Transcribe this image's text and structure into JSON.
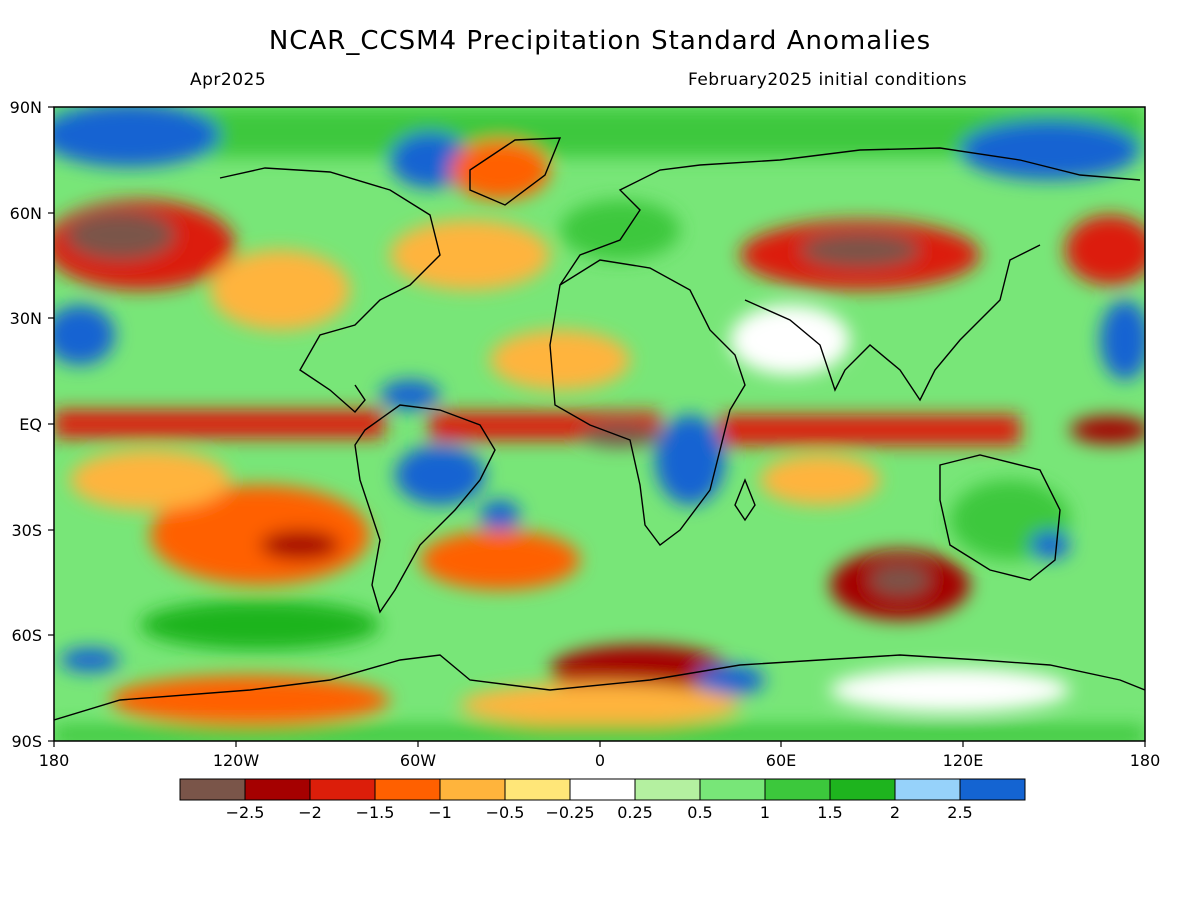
{
  "header": {
    "title": "NCAR_CCSM4 Precipitation Standard Anomalies",
    "target_month": "Apr2025",
    "init_conditions": "February2025 initial conditions"
  },
  "map": {
    "projection": "equirectangular",
    "lon_range": [
      -180,
      180
    ],
    "lat_range": [
      -90,
      90
    ],
    "lat_labels": [
      "90N",
      "60N",
      "30N",
      "EQ",
      "30S",
      "60S",
      "90S"
    ],
    "lon_labels": [
      "180",
      "120W",
      "60W",
      "0",
      "60E",
      "120E",
      "180"
    ]
  },
  "colorbar": {
    "colors": [
      "#7a5549",
      "#a50000",
      "#dc1e0a",
      "#ff6000",
      "#ffb43c",
      "#ffe678",
      "#ffffff",
      "#b4f0a0",
      "#78e678",
      "#3cc83c",
      "#1eb41e",
      "#96d2fa",
      "#1464d2"
    ],
    "labels": [
      "−2.5",
      "−2",
      "−1.5",
      "−1",
      "−0.5",
      "−0.25",
      "0.25",
      "0.5",
      "1",
      "1.5",
      "2",
      "2.5"
    ]
  }
}
